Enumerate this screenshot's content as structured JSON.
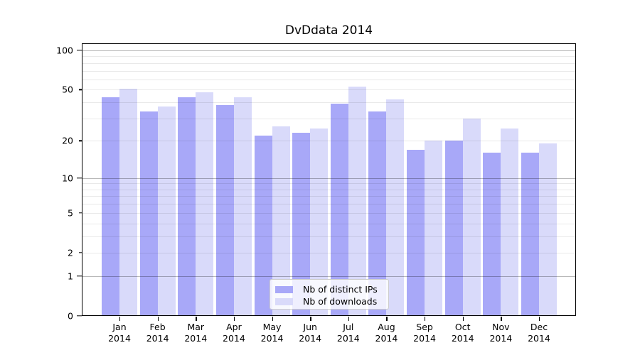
{
  "chart_data": {
    "type": "bar",
    "title": "DvDdata 2014",
    "categories": [
      "Jan",
      "Feb",
      "Mar",
      "Apr",
      "May",
      "Jun",
      "Jul",
      "Aug",
      "Sep",
      "Oct",
      "Nov",
      "Dec"
    ],
    "category_year": "2014",
    "series": [
      {
        "name": "Nb of distinct IPs",
        "color": "#a8a8f8",
        "values": [
          44,
          34,
          44,
          38,
          22,
          23,
          39,
          34,
          17,
          20,
          16,
          16
        ]
      },
      {
        "name": "Nb of downloads",
        "color": "#d9dafa",
        "values": [
          51,
          37,
          48,
          44,
          26,
          25,
          53,
          42,
          20,
          30,
          25,
          19
        ]
      }
    ],
    "y_scale": "log1p",
    "y_axis": {
      "tick_values": [
        0,
        1,
        2,
        5,
        10,
        20,
        50,
        100
      ],
      "tick_labels": [
        "0",
        "1",
        "2",
        "5",
        "10",
        "20",
        "50",
        "100"
      ],
      "major_tick_values": [
        0,
        1,
        10,
        100
      ],
      "major_grid_values": [
        1,
        10,
        100
      ],
      "minor_grid_values": [
        2,
        3,
        4,
        5,
        6,
        7,
        8,
        9,
        20,
        30,
        40,
        50,
        60,
        70,
        80,
        90
      ],
      "axis_top_value": 113
    },
    "xlabel": "",
    "ylabel": "",
    "grid": "horizontal",
    "legend_position": "bottom-center",
    "colors": {
      "axis_line": "#000000",
      "major_grid": "#bdbdbd",
      "minor_grid": "#ececec",
      "background": "#ffffff",
      "legend_border": "#cccccc"
    }
  }
}
